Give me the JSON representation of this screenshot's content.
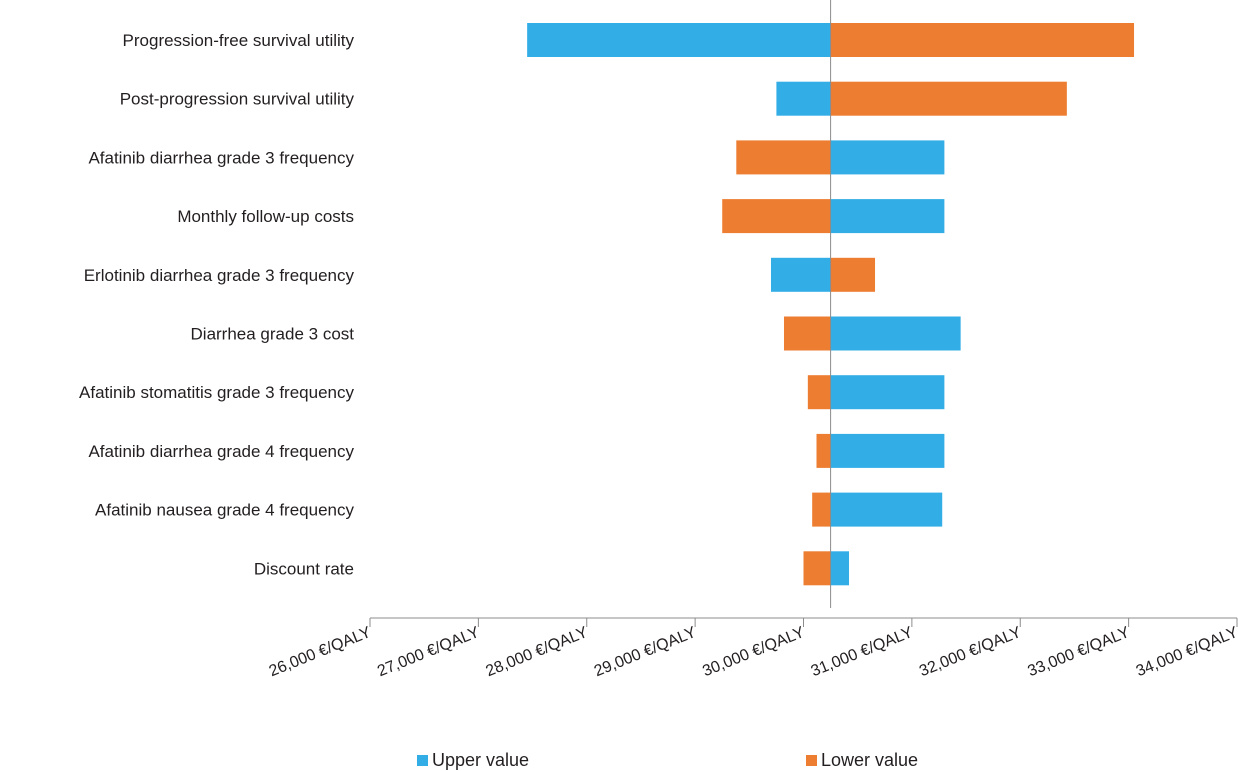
{
  "chart_data": {
    "type": "bar",
    "orientation": "horizontal",
    "subtype": "tornado",
    "title": "",
    "xlabel": "",
    "ylabel": "",
    "base_value": 30250,
    "xlim": [
      26000,
      34000
    ],
    "x_ticks": [
      26000,
      27000,
      28000,
      29000,
      30000,
      31000,
      32000,
      33000,
      34000
    ],
    "x_tick_labels": [
      "26,000 €/QALY",
      "27,000 €/QALY",
      "28,000 €/QALY",
      "29,000 €/QALY",
      "30,000 €/QALY",
      "31,000 €/QALY",
      "32,000 €/QALY",
      "33,000 €/QALY",
      "34,000 €/QALY"
    ],
    "categories": [
      "Progression-free survival utility",
      "Post-progression survival utility",
      "Afatinib diarrhea grade 3 frequency",
      "Monthly follow-up costs",
      "Erlotinib diarrhea grade 3 frequency",
      "Diarrhea grade 3 cost",
      "Afatinib stomatitis grade 3 frequency",
      "Afatinib diarrhea grade 4 frequency",
      "Afatinib nausea grade 4 frequency",
      "Discount rate"
    ],
    "series": [
      {
        "name": "Upper value",
        "color": "#33ade6",
        "values": [
          27450,
          29750,
          31300,
          31300,
          29700,
          31450,
          31300,
          31300,
          31280,
          30420
        ]
      },
      {
        "name": "Lower value",
        "color": "#ed7d31",
        "values": [
          33050,
          32430,
          29380,
          29250,
          30660,
          29820,
          30040,
          30120,
          30080,
          30000
        ]
      }
    ],
    "legend_position": "bottom",
    "grid": false
  }
}
